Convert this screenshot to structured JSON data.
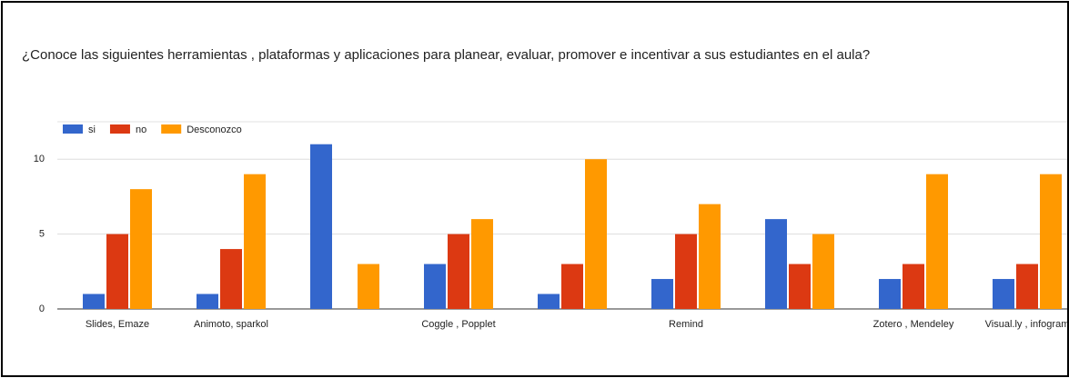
{
  "chart_data": {
    "type": "bar",
    "title": "¿Conoce las siguientes herramientas , plataformas y aplicaciones para planear, evaluar, promover e incentivar a sus estudiantes en el aula?",
    "categories": [
      "Slides, Emaze",
      "Animoto, sparkol",
      null,
      "Coggle , Popplet",
      null,
      "Remind",
      null,
      "Zotero , Mendeley",
      "Visual.ly , infogram"
    ],
    "series": [
      {
        "name": "si",
        "color": "#3366cc",
        "values": [
          1,
          1,
          11,
          3,
          1,
          2,
          6,
          2,
          2
        ]
      },
      {
        "name": "no",
        "color": "#dc3912",
        "values": [
          5,
          4,
          0,
          5,
          3,
          5,
          3,
          3,
          3
        ]
      },
      {
        "name": "Desconozco",
        "color": "#ff9900",
        "values": [
          8,
          9,
          3,
          6,
          10,
          7,
          5,
          9,
          9
        ]
      }
    ],
    "ylim": [
      0,
      12.5
    ],
    "yticks": [
      0,
      5,
      10
    ],
    "grid": true,
    "legend": "top-left"
  }
}
